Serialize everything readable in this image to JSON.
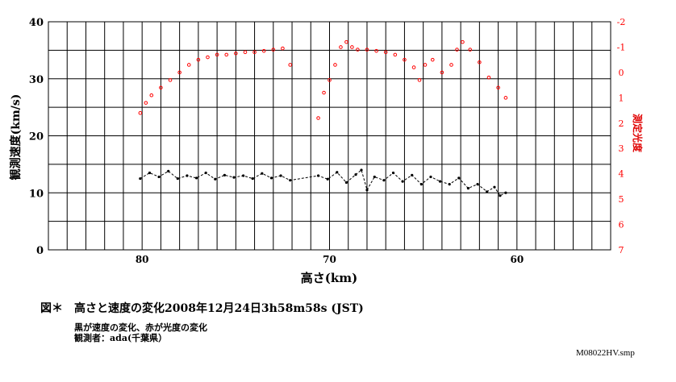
{
  "chart_data": {
    "type": "scatter",
    "xlabel": "高さ(km)",
    "ylabel": "観測速度(km/s)",
    "y2label": "測定光度",
    "x_ticks": [
      "80",
      "70",
      "60"
    ],
    "y_ticks": [
      "0",
      "10",
      "20",
      "30",
      "40"
    ],
    "y2_ticks": [
      "-2",
      "-1",
      "0",
      "1",
      "2",
      "3",
      "4",
      "5",
      "6",
      "7"
    ],
    "xlim": [
      85,
      55
    ],
    "ylim": [
      0,
      40
    ],
    "y2lim": [
      7,
      -2
    ],
    "grid": true,
    "colors": {
      "velocity": "#000000",
      "magnitude": "#ff0000"
    },
    "series": [
      {
        "axis": "left",
        "style": "dashed-dots",
        "x": [
          80.1,
          79.6,
          79.1,
          78.6,
          78.1,
          77.6,
          77.1,
          76.6,
          76.1,
          75.6,
          75.1,
          74.6,
          74.1,
          73.6,
          73.1,
          72.6,
          72.1,
          70.6,
          70.1,
          69.6,
          69.1,
          68.6,
          68.3,
          68.0,
          67.6,
          67.1,
          66.6,
          66.1,
          65.6,
          65.1,
          64.6,
          64.1,
          63.6,
          63.1,
          62.6,
          62.1,
          61.6,
          61.2,
          60.9,
          60.6
        ],
        "y": [
          12.5,
          13.5,
          12.8,
          13.8,
          12.5,
          13.0,
          12.6,
          13.5,
          12.4,
          13.1,
          12.7,
          13.0,
          12.5,
          13.4,
          12.6,
          13.0,
          12.2,
          13.0,
          12.4,
          13.6,
          11.8,
          13.2,
          14.0,
          10.5,
          12.8,
          12.2,
          13.5,
          12.0,
          13.1,
          11.5,
          12.8,
          12.0,
          11.5,
          12.6,
          10.8,
          11.5,
          10.2,
          11.0,
          9.5,
          10.0
        ]
      },
      {
        "axis": "right",
        "style": "points",
        "x": [
          80.1,
          79.8,
          79.5,
          79.0,
          78.5,
          78.0,
          77.5,
          77.0,
          76.5,
          76.0,
          75.5,
          75.0,
          74.5,
          74.0,
          73.5,
          73.0,
          72.5,
          72.1,
          70.6,
          70.3,
          70.0,
          69.7,
          69.4,
          69.1,
          68.8,
          68.5,
          68.0,
          67.5,
          67.0,
          66.5,
          66.0,
          65.5,
          65.2,
          64.9,
          64.5,
          64.0,
          63.5,
          63.2,
          62.9,
          62.5,
          62.0,
          61.5,
          61.0,
          60.6
        ],
        "y": [
          1.6,
          1.2,
          0.9,
          0.6,
          0.3,
          0.0,
          -0.3,
          -0.5,
          -0.6,
          -0.7,
          -0.7,
          -0.75,
          -0.8,
          -0.8,
          -0.85,
          -0.9,
          -0.95,
          -0.3,
          1.8,
          0.8,
          0.3,
          -0.3,
          -1.0,
          -1.2,
          -1.0,
          -0.9,
          -0.9,
          -0.85,
          -0.8,
          -0.7,
          -0.5,
          -0.2,
          0.3,
          -0.3,
          -0.5,
          0.0,
          -0.3,
          -0.9,
          -1.2,
          -0.9,
          -0.4,
          0.2,
          0.6,
          1.0
        ]
      }
    ]
  },
  "caption": {
    "title": "図＊　高さと速度の変化2008年12月24日3h58m58s (JST)",
    "note1": "黒が速度の変化、赤が光度の変化",
    "note2": "観測者：ada(千葉県）"
  },
  "file_label": "M08022HV.smp"
}
